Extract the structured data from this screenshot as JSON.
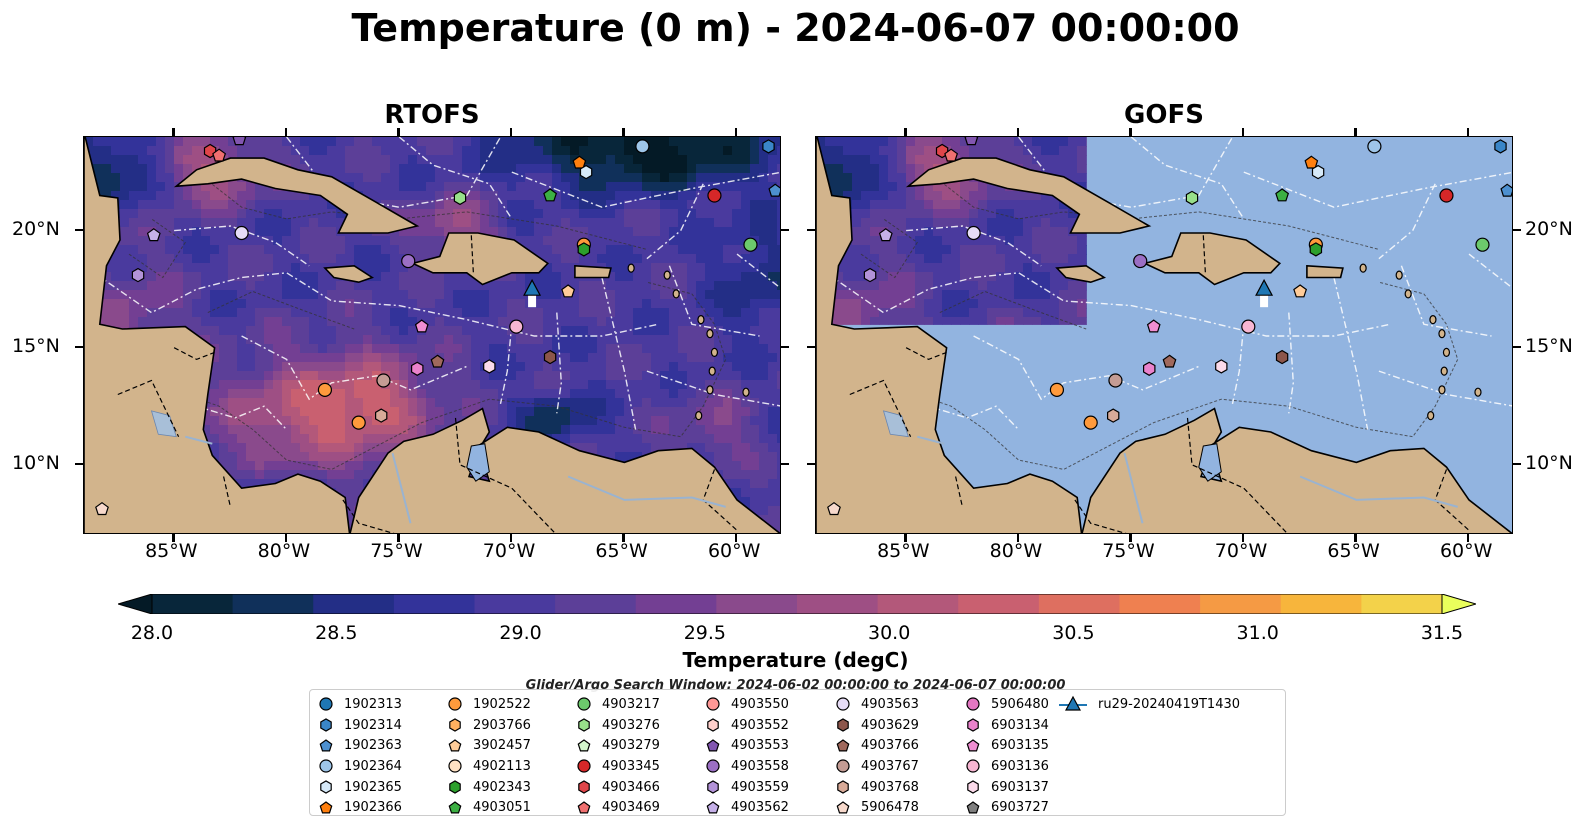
{
  "title": "Temperature (0 m) - 2024-06-07 00:00:00",
  "panels": [
    {
      "name": "RTOFS"
    },
    {
      "name": "GOFS"
    }
  ],
  "lon_ticks": [
    "85°W",
    "80°W",
    "75°W",
    "70°W",
    "65°W",
    "60°W"
  ],
  "lat_ticks": [
    "20°N",
    "15°N",
    "10°N"
  ],
  "extent": {
    "lon": [
      -89,
      -58
    ],
    "lat": [
      7,
      24
    ]
  },
  "colorbar": {
    "label": "Temperature (degC)",
    "min": 28.0,
    "max": 31.5,
    "step": 0.25,
    "ticks": [
      "28.0",
      "28.5",
      "29.0",
      "29.5",
      "30.0",
      "30.5",
      "31.0",
      "31.5"
    ],
    "colors": [
      "#08263a",
      "#10305a",
      "#232e86",
      "#33339a",
      "#4a3a9e",
      "#5c3f98",
      "#733f93",
      "#8a4a8c",
      "#9e4f84",
      "#b3587a",
      "#c96070",
      "#de6f60",
      "#ef8050",
      "#f59a44",
      "#f7b53c",
      "#f3d24a"
    ],
    "under_color": "#041a26",
    "over_color": "#eaff5c"
  },
  "search_window": "Glider/Argo Search Window: 2024-06-02 00:00:00 to 2024-06-07 00:00:00",
  "legend": [
    {
      "id": "1902313",
      "marker": "circle",
      "color": "#1f77b4"
    },
    {
      "id": "1902314",
      "marker": "hexagon",
      "color": "#3a86c8"
    },
    {
      "id": "1902363",
      "marker": "pentagon",
      "color": "#4d90d0"
    },
    {
      "id": "1902364",
      "marker": "circle",
      "color": "#9ec5e8"
    },
    {
      "id": "1902365",
      "marker": "hexagon",
      "color": "#d6e9f8"
    },
    {
      "id": "1902366",
      "marker": "pentagon",
      "color": "#ff7f0e"
    },
    {
      "id": "1902522",
      "marker": "circle",
      "color": "#ff9a3c"
    },
    {
      "id": "2903766",
      "marker": "hexagon",
      "color": "#ffb060"
    },
    {
      "id": "3902457",
      "marker": "pentagon",
      "color": "#ffcc99"
    },
    {
      "id": "4902113",
      "marker": "circle",
      "color": "#ffe2c4"
    },
    {
      "id": "4902343",
      "marker": "hexagon",
      "color": "#2ca02c"
    },
    {
      "id": "4903051",
      "marker": "pentagon",
      "color": "#3cb043"
    },
    {
      "id": "4903217",
      "marker": "circle",
      "color": "#6cc96c"
    },
    {
      "id": "4903276",
      "marker": "hexagon",
      "color": "#98df8a"
    },
    {
      "id": "4903279",
      "marker": "pentagon",
      "color": "#d4f5cc"
    },
    {
      "id": "4903345",
      "marker": "circle",
      "color": "#d62728"
    },
    {
      "id": "4903466",
      "marker": "hexagon",
      "color": "#e0464a"
    },
    {
      "id": "4903469",
      "marker": "pentagon",
      "color": "#f07070"
    },
    {
      "id": "4903550",
      "marker": "circle",
      "color": "#ff9896"
    },
    {
      "id": "4903552",
      "marker": "hexagon",
      "color": "#ffd0cc"
    },
    {
      "id": "4903553",
      "marker": "pentagon",
      "color": "#8256b0"
    },
    {
      "id": "4903558",
      "marker": "circle",
      "color": "#9b6fc4"
    },
    {
      "id": "4903559",
      "marker": "hexagon",
      "color": "#b393d8"
    },
    {
      "id": "4903562",
      "marker": "pentagon",
      "color": "#c5b0e8"
    },
    {
      "id": "4903563",
      "marker": "circle",
      "color": "#e6dcf6"
    },
    {
      "id": "4903629",
      "marker": "hexagon",
      "color": "#8c564b"
    },
    {
      "id": "4903766",
      "marker": "pentagon",
      "color": "#a0695d"
    },
    {
      "id": "4903767",
      "marker": "circle",
      "color": "#c49c94"
    },
    {
      "id": "4903768",
      "marker": "hexagon",
      "color": "#d8aa98"
    },
    {
      "id": "5906478",
      "marker": "pentagon",
      "color": "#f7d9cc"
    },
    {
      "id": "5906480",
      "marker": "circle",
      "color": "#e377c2"
    },
    {
      "id": "6903134",
      "marker": "hexagon",
      "color": "#ea82cc"
    },
    {
      "id": "6903135",
      "marker": "pentagon",
      "color": "#f08ed2"
    },
    {
      "id": "6903136",
      "marker": "circle",
      "color": "#f7b6d2"
    },
    {
      "id": "6903137",
      "marker": "hexagon",
      "color": "#fbdaea"
    },
    {
      "id": "6903727",
      "marker": "pentagon",
      "color": "#7f7f7f"
    },
    {
      "id": "ru29-20240419T1430",
      "marker": "triangle-line",
      "color": "#1f77b4"
    }
  ],
  "floats": [
    {
      "id": "1902364",
      "lon": -64.2,
      "lat": 23.6
    },
    {
      "id": "1902314",
      "lon": -58.6,
      "lat": 23.6
    },
    {
      "id": "1902363",
      "lon": -58.3,
      "lat": 21.7
    },
    {
      "id": "1902366",
      "lon": -67.0,
      "lat": 22.9
    },
    {
      "id": "1902365",
      "lon": -66.7,
      "lat": 22.5
    },
    {
      "id": "4903466",
      "lon": -83.4,
      "lat": 23.4
    },
    {
      "id": "4903469",
      "lon": -83.0,
      "lat": 23.2
    },
    {
      "id": "4903553",
      "lon": -82.1,
      "lat": 23.9
    },
    {
      "id": "4903276",
      "lon": -72.3,
      "lat": 21.4
    },
    {
      "id": "4903051",
      "lon": -68.3,
      "lat": 21.5
    },
    {
      "id": "4903345",
      "lon": -61.0,
      "lat": 21.5
    },
    {
      "id": "4903217",
      "lon": -59.4,
      "lat": 19.4
    },
    {
      "id": "1902522",
      "lon": -66.8,
      "lat": 19.4
    },
    {
      "id": "4902343",
      "lon": -66.8,
      "lat": 19.2
    },
    {
      "id": "4903562",
      "lon": -85.9,
      "lat": 19.8
    },
    {
      "id": "4903563",
      "lon": -82.0,
      "lat": 19.9
    },
    {
      "id": "4903558",
      "lon": -74.6,
      "lat": 18.7
    },
    {
      "id": "4903559",
      "lon": -86.6,
      "lat": 18.1
    },
    {
      "id": "3902457",
      "lon": -67.5,
      "lat": 17.4
    },
    {
      "id": "6903135",
      "lon": -74.0,
      "lat": 15.9
    },
    {
      "id": "6903136",
      "lon": -69.8,
      "lat": 15.9
    },
    {
      "id": "4903766",
      "lon": -73.3,
      "lat": 14.4
    },
    {
      "id": "6903134",
      "lon": -74.2,
      "lat": 14.1
    },
    {
      "id": "6903137",
      "lon": -71.0,
      "lat": 14.2
    },
    {
      "id": "4903629",
      "lon": -68.3,
      "lat": 14.6
    },
    {
      "id": "4903767",
      "lon": -75.7,
      "lat": 13.6
    },
    {
      "id": "1902522b",
      "lon": -78.3,
      "lat": 13.2
    },
    {
      "id": "1902522c",
      "lon": -76.8,
      "lat": 11.8
    },
    {
      "id": "4903768",
      "lon": -75.8,
      "lat": 12.1
    },
    {
      "id": "5906478",
      "lon": -88.2,
      "lat": 8.1
    }
  ],
  "glider": {
    "lon": -69.1,
    "lat": 17.5
  }
}
